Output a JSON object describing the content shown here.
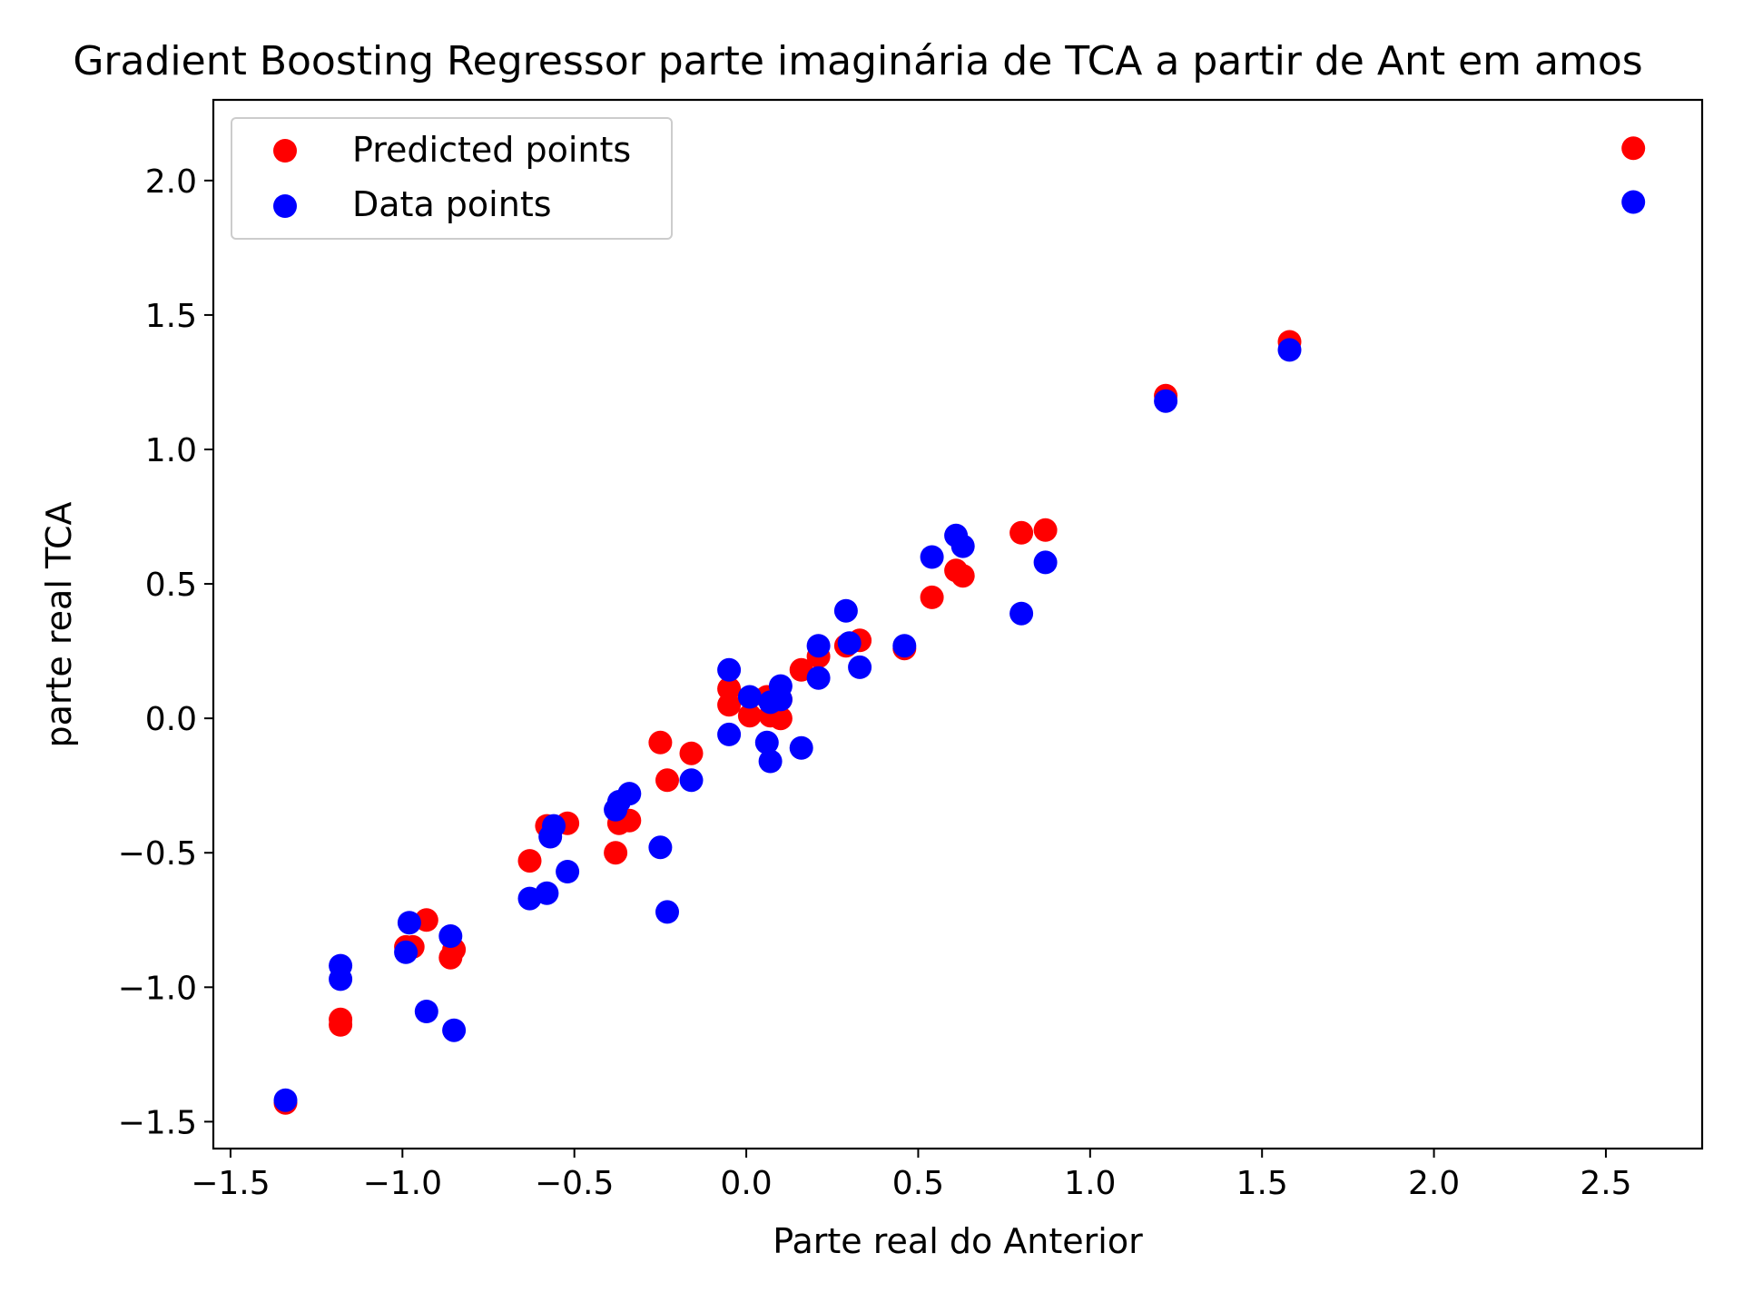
{
  "chart_data": {
    "type": "scatter",
    "title": "Gradient Boosting Regressor parte imaginária de TCA a partir de Ant em amos",
    "xlabel": "Parte real do Anterior",
    "ylabel": "parte real TCA",
    "xlim": [
      -1.55,
      2.78
    ],
    "ylim": [
      -1.6,
      2.3
    ],
    "xticks": [
      -1.5,
      -1.0,
      -0.5,
      0.0,
      0.5,
      1.0,
      1.5,
      2.0,
      2.5
    ],
    "xtick_labels": [
      "−1.5",
      "−1.0",
      "−0.5",
      "0.0",
      "0.5",
      "1.0",
      "1.5",
      "2.0",
      "2.5"
    ],
    "yticks": [
      -1.5,
      -1.0,
      -0.5,
      0.0,
      0.5,
      1.0,
      1.5,
      2.0
    ],
    "ytick_labels": [
      "−1.5",
      "−1.0",
      "−0.5",
      "0.0",
      "0.5",
      "1.0",
      "1.5",
      "2.0"
    ],
    "grid": false,
    "legend_position": "upper-left",
    "series": [
      {
        "name": "Predicted points",
        "color": "#ff0000",
        "points": [
          [
            -1.34,
            -1.43
          ],
          [
            -1.18,
            -1.12
          ],
          [
            -1.18,
            -1.14
          ],
          [
            -0.99,
            -0.85
          ],
          [
            -0.97,
            -0.85
          ],
          [
            -0.93,
            -0.75
          ],
          [
            -0.86,
            -0.89
          ],
          [
            -0.85,
            -0.86
          ],
          [
            -0.63,
            -0.53
          ],
          [
            -0.58,
            -0.4
          ],
          [
            -0.52,
            -0.39
          ],
          [
            -0.38,
            -0.5
          ],
          [
            -0.37,
            -0.39
          ],
          [
            -0.34,
            -0.38
          ],
          [
            -0.25,
            -0.09
          ],
          [
            -0.23,
            -0.23
          ],
          [
            -0.16,
            -0.13
          ],
          [
            -0.05,
            0.11
          ],
          [
            -0.05,
            0.05
          ],
          [
            0.01,
            0.01
          ],
          [
            0.06,
            0.08
          ],
          [
            0.07,
            0.01
          ],
          [
            0.1,
            0.0
          ],
          [
            0.1,
            0.07
          ],
          [
            0.16,
            0.18
          ],
          [
            0.21,
            0.23
          ],
          [
            0.29,
            0.27
          ],
          [
            0.33,
            0.29
          ],
          [
            0.46,
            0.26
          ],
          [
            0.54,
            0.45
          ],
          [
            0.61,
            0.55
          ],
          [
            0.63,
            0.53
          ],
          [
            0.8,
            0.69
          ],
          [
            0.87,
            0.7
          ],
          [
            1.22,
            1.2
          ],
          [
            1.58,
            1.4
          ],
          [
            2.58,
            2.12
          ]
        ]
      },
      {
        "name": "Data points",
        "color": "#0000ff",
        "points": [
          [
            -1.34,
            -1.42
          ],
          [
            -1.18,
            -0.92
          ],
          [
            -1.18,
            -0.97
          ],
          [
            -0.99,
            -0.87
          ],
          [
            -0.98,
            -0.76
          ],
          [
            -0.93,
            -1.09
          ],
          [
            -0.86,
            -0.81
          ],
          [
            -0.85,
            -1.16
          ],
          [
            -0.63,
            -0.67
          ],
          [
            -0.58,
            -0.65
          ],
          [
            -0.57,
            -0.44
          ],
          [
            -0.56,
            -0.4
          ],
          [
            -0.52,
            -0.57
          ],
          [
            -0.38,
            -0.34
          ],
          [
            -0.37,
            -0.31
          ],
          [
            -0.34,
            -0.28
          ],
          [
            -0.25,
            -0.48
          ],
          [
            -0.23,
            -0.72
          ],
          [
            -0.16,
            -0.23
          ],
          [
            -0.05,
            0.18
          ],
          [
            -0.05,
            -0.06
          ],
          [
            0.01,
            0.08
          ],
          [
            0.06,
            -0.09
          ],
          [
            0.07,
            -0.16
          ],
          [
            0.07,
            0.06
          ],
          [
            0.1,
            0.07
          ],
          [
            0.1,
            0.12
          ],
          [
            0.16,
            -0.11
          ],
          [
            0.21,
            0.27
          ],
          [
            0.21,
            0.15
          ],
          [
            0.29,
            0.4
          ],
          [
            0.3,
            0.28
          ],
          [
            0.33,
            0.19
          ],
          [
            0.46,
            0.27
          ],
          [
            0.54,
            0.6
          ],
          [
            0.61,
            0.68
          ],
          [
            0.63,
            0.64
          ],
          [
            0.8,
            0.39
          ],
          [
            0.87,
            0.58
          ],
          [
            1.22,
            1.18
          ],
          [
            1.58,
            1.37
          ],
          [
            2.58,
            1.92
          ]
        ]
      }
    ]
  }
}
